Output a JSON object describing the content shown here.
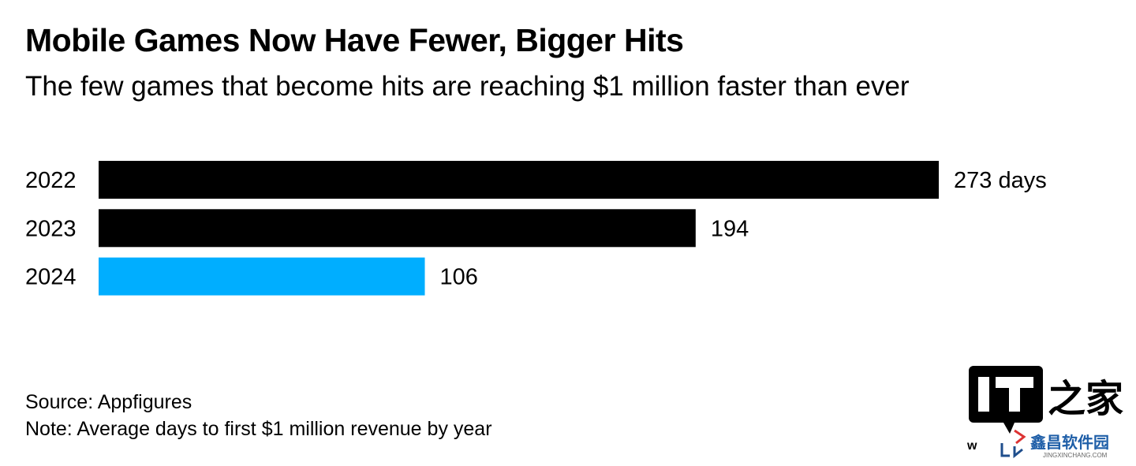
{
  "title": "Mobile Games Now Have Fewer, Bigger Hits",
  "subtitle": "The few games that become hits are reaching $1 million faster than ever",
  "source": "Source: Appfigures",
  "note": "Note: Average days to first $1 million revenue by year",
  "watermark": {
    "logo1": "IT之家",
    "logo2": "鑫昌软件园",
    "logo2_url_text": "JINGXINCHANG.COM",
    "partial": "w"
  },
  "chart_data": {
    "type": "bar",
    "orientation": "horizontal",
    "categories": [
      "2022",
      "2023",
      "2024"
    ],
    "values": [
      273,
      194,
      106
    ],
    "value_labels": [
      "273 days",
      "194",
      "106"
    ],
    "colors": [
      "#000000",
      "#000000",
      "#00AEFF"
    ],
    "xlim": [
      0,
      273
    ],
    "grid": false,
    "title": "Mobile Games Now Have Fewer, Bigger Hits"
  }
}
